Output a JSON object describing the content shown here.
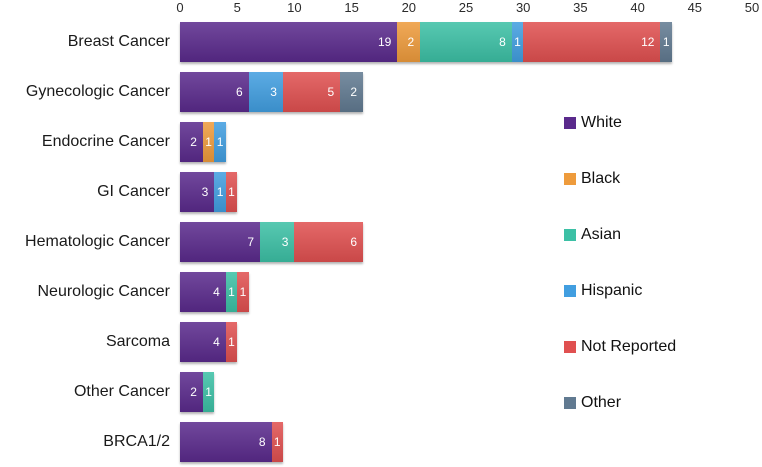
{
  "chart_data": {
    "type": "bar",
    "orientation": "horizontal",
    "stacked": true,
    "title": "",
    "xlabel": "",
    "ylabel": "",
    "xlim": [
      0,
      50
    ],
    "x_ticks": [
      0,
      5,
      10,
      15,
      20,
      25,
      30,
      35,
      40,
      45,
      50
    ],
    "grid": false,
    "legend_position": "right",
    "value_labels": "inside-end",
    "categories": [
      "Breast Cancer",
      "Gynecologic Cancer",
      "Endocrine Cancer",
      "GI Cancer",
      "Hematologic Cancer",
      "Neurologic Cancer",
      "Sarcoma",
      "Other Cancer",
      "BRCA1/2"
    ],
    "series": [
      {
        "name": "White",
        "color": "#5a2a8c",
        "values": [
          19,
          6,
          2,
          3,
          7,
          4,
          4,
          2,
          8
        ]
      },
      {
        "name": "Black",
        "color": "#ee9b3c",
        "values": [
          2,
          0,
          1,
          0,
          0,
          0,
          0,
          0,
          0
        ]
      },
      {
        "name": "Asian",
        "color": "#3cc0a5",
        "values": [
          8,
          0,
          0,
          0,
          3,
          1,
          0,
          1,
          0
        ]
      },
      {
        "name": "Hispanic",
        "color": "#419ee0",
        "values": [
          1,
          3,
          1,
          1,
          0,
          0,
          0,
          0,
          0
        ]
      },
      {
        "name": "Not Reported",
        "color": "#e05050",
        "values": [
          12,
          5,
          0,
          1,
          6,
          1,
          1,
          0,
          1
        ]
      },
      {
        "name": "Other",
        "color": "#617a91",
        "values": [
          1,
          2,
          0,
          0,
          0,
          0,
          0,
          0,
          0
        ]
      }
    ],
    "totals": [
      43,
      16,
      4,
      5,
      16,
      6,
      5,
      3,
      9
    ]
  }
}
